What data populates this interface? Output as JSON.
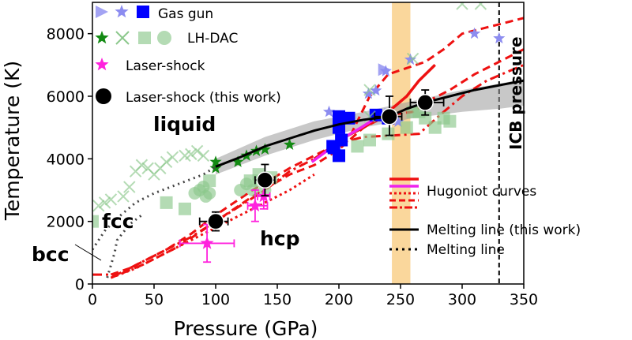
{
  "chart_data": {
    "type": "scatter",
    "xlabel": "Pressure (GPa)",
    "ylabel": "Temperature (K)",
    "xlim": [
      0,
      350
    ],
    "ylim": [
      0,
      9000
    ],
    "xticks": [
      "0",
      "50",
      "100",
      "150",
      "200",
      "250",
      "300",
      "350"
    ],
    "yticks": [
      "0",
      "2000",
      "4000",
      "6000",
      "8000"
    ],
    "xtick_values": [
      0,
      50,
      100,
      150,
      200,
      250,
      300,
      350
    ],
    "ytick_values": [
      0,
      2000,
      4000,
      6000,
      8000
    ],
    "phase_labels": {
      "liquid": "liquid",
      "fcc": "fcc",
      "bcc": "bcc",
      "hcp": "hcp"
    },
    "icb_label": "ICB pressure",
    "icb_pressure": 330,
    "shaded_band": {
      "x": [
        243,
        258
      ],
      "color": "#f5a623"
    },
    "legend": {
      "gas_gun": "Gas gun",
      "lhdac": "LH-DAC",
      "laser_shock": "Laser-shock",
      "this_work": "Laser-shock (this work)",
      "hugoniot": "Hugoniot curves",
      "melting_this_work": "Melting line (this work)",
      "melting": "Melting line"
    },
    "colors": {
      "gas_gun_tri": "#8c8cf0",
      "gas_gun_star": "#8c8cf0",
      "gas_gun_square": "#0000ff",
      "lhdac_star": "#138a13",
      "lhdac_x": "#8cc88c",
      "lhdac_square": "#8cc88c",
      "lhdac_circle": "#8cc88c",
      "laser_shock": "#ff22dd",
      "this_work": "#000000",
      "hugoniot": "#ee1111",
      "hugoniot_magenta": "#ee22ee",
      "band_grey": "#9a9a9a"
    },
    "series": [
      {
        "name": "Gas gun",
        "marker": "triangle",
        "points": [
          [
            5,
            8600
          ],
          [
            237,
            6850
          ],
          [
            242,
            5420
          ]
        ]
      },
      {
        "name": "Gas gun",
        "marker": "star",
        "points": [
          [
            25,
            8600
          ],
          [
            238,
            6800
          ],
          [
            258,
            7170
          ],
          [
            224,
            6080
          ],
          [
            230,
            6180
          ],
          [
            248,
            5180
          ],
          [
            310,
            8000
          ],
          [
            330,
            7850
          ],
          [
            200,
            5050
          ],
          [
            192,
            5500
          ]
        ]
      },
      {
        "name": "Gas gun",
        "marker": "square",
        "points": [
          [
            42,
            8610
          ],
          [
            200,
            5350
          ],
          [
            200,
            5000
          ],
          [
            208,
            5300
          ],
          [
            230,
            5400
          ],
          [
            240,
            5300
          ],
          [
            196,
            4350
          ],
          [
            202,
            4600
          ],
          [
            200,
            4100
          ],
          [
            195,
            4400
          ]
        ]
      },
      {
        "name": "LH-DAC",
        "marker": "star",
        "points": [
          [
            7,
            7780
          ],
          [
            100,
            3700
          ],
          [
            100,
            3900
          ],
          [
            118,
            3900
          ],
          [
            125,
            4100
          ],
          [
            133,
            4250
          ],
          [
            140,
            4300
          ],
          [
            160,
            4450
          ]
        ]
      },
      {
        "name": "LH-DAC",
        "marker": "x",
        "points": [
          [
            29,
            7780
          ],
          [
            5,
            2500
          ],
          [
            10,
            2600
          ],
          [
            15,
            2700
          ],
          [
            25,
            2800
          ],
          [
            30,
            3100
          ],
          [
            35,
            3600
          ],
          [
            40,
            3800
          ],
          [
            45,
            3700
          ],
          [
            50,
            3500
          ],
          [
            55,
            3700
          ],
          [
            60,
            3900
          ],
          [
            65,
            4050
          ],
          [
            75,
            4100
          ],
          [
            80,
            4150
          ],
          [
            85,
            4250
          ],
          [
            90,
            4100
          ],
          [
            225,
            5350
          ],
          [
            225,
            6200
          ],
          [
            260,
            7200
          ],
          [
            300,
            8950
          ],
          [
            315,
            8950
          ]
        ]
      },
      {
        "name": "LH-DAC",
        "marker": "square",
        "points": [
          [
            49,
            7780
          ],
          [
            0,
            2000
          ],
          [
            60,
            2600
          ],
          [
            75,
            2400
          ],
          [
            95,
            3300
          ],
          [
            128,
            3300
          ],
          [
            135,
            3500
          ],
          [
            145,
            3400
          ],
          [
            215,
            4400
          ],
          [
            225,
            4600
          ],
          [
            240,
            4800
          ],
          [
            255,
            5000
          ],
          [
            260,
            5500
          ],
          [
            265,
            5500
          ],
          [
            270,
            5300
          ],
          [
            278,
            5000
          ],
          [
            285,
            5300
          ],
          [
            290,
            5200
          ]
        ]
      },
      {
        "name": "LH-DAC",
        "marker": "circle",
        "points": [
          [
            63,
            7780
          ],
          [
            83,
            2900
          ],
          [
            87,
            3000
          ],
          [
            90,
            3100
          ],
          [
            92,
            2800
          ],
          [
            95,
            2900
          ],
          [
            120,
            3000
          ],
          [
            125,
            3200
          ],
          [
            130,
            3000
          ],
          [
            135,
            3300
          ],
          [
            140,
            3000
          ]
        ]
      },
      {
        "name": "Laser-shock",
        "marker": "star",
        "points": [
          [
            93,
            1300
          ],
          [
            132,
            2500
          ],
          [
            139,
            2800
          ]
        ],
        "xerr": [
          [
            22,
            22
          ],
          [
            6,
            10
          ],
          [
            5,
            5
          ]
        ],
        "yerr": [
          [
            600,
            600
          ],
          [
            500,
            500
          ],
          [
            400,
            400
          ]
        ]
      },
      {
        "name": "Laser-shock (this work)",
        "marker": "circle",
        "points": [
          [
            100,
            2000
          ],
          [
            140,
            3320
          ],
          [
            241,
            5350
          ],
          [
            270,
            5800
          ]
        ],
        "xerr": [
          [
            13,
            10
          ],
          [
            8,
            8
          ],
          [
            12,
            10
          ],
          [
            12,
            15
          ]
        ],
        "yerr": [
          [
            300,
            300
          ],
          [
            500,
            500
          ],
          [
            600,
            650
          ],
          [
            400,
            400
          ]
        ]
      }
    ],
    "curves": {
      "hugoniot_solid": [
        [
          180,
          4000
        ],
        [
          195,
          4400
        ],
        [
          205,
          4700
        ],
        [
          220,
          5000
        ],
        [
          240,
          5500
        ],
        [
          255,
          6000
        ],
        [
          265,
          6500
        ],
        [
          278,
          7000
        ]
      ],
      "hugoniot_dashed_1": [
        [
          15,
          300
        ],
        [
          30,
          500
        ],
        [
          45,
          800
        ],
        [
          60,
          1100
        ],
        [
          80,
          1600
        ],
        [
          100,
          2200
        ],
        [
          130,
          3000
        ],
        [
          160,
          3700
        ],
        [
          190,
          4300
        ],
        [
          210,
          4800
        ],
        [
          225,
          6000
        ],
        [
          240,
          6700
        ],
        [
          255,
          6900
        ],
        [
          270,
          7100
        ],
        [
          285,
          7500
        ],
        [
          300,
          8000
        ],
        [
          330,
          8300
        ],
        [
          350,
          8500
        ]
      ],
      "hugoniot_dashed_2": [
        [
          15,
          200
        ],
        [
          40,
          600
        ],
        [
          70,
          1200
        ],
        [
          100,
          2000
        ],
        [
          130,
          2800
        ],
        [
          160,
          3500
        ],
        [
          180,
          3800
        ],
        [
          200,
          4300
        ],
        [
          220,
          5000
        ],
        [
          240,
          5400
        ],
        [
          260,
          5500
        ],
        [
          275,
          5900
        ],
        [
          290,
          6200
        ],
        [
          310,
          6700
        ],
        [
          330,
          7100
        ],
        [
          350,
          7500
        ]
      ],
      "hugoniot_dotted": [
        [
          15,
          200
        ],
        [
          35,
          500
        ],
        [
          55,
          900
        ],
        [
          80,
          1400
        ],
        [
          100,
          1800
        ],
        [
          120,
          2200
        ],
        [
          140,
          2600
        ],
        [
          160,
          3000
        ],
        [
          180,
          3500
        ]
      ],
      "hugoniot_dashdot": [
        [
          0,
          300
        ],
        [
          20,
          300
        ],
        [
          40,
          700
        ],
        [
          60,
          1100
        ],
        [
          80,
          1500
        ],
        [
          100,
          2000
        ],
        [
          120,
          2500
        ],
        [
          140,
          3000
        ],
        [
          160,
          3600
        ],
        [
          180,
          4000
        ],
        [
          200,
          4500
        ],
        [
          220,
          4700
        ],
        [
          245,
          4750
        ],
        [
          265,
          4800
        ],
        [
          285,
          5500
        ],
        [
          300,
          6000
        ],
        [
          320,
          6500
        ],
        [
          350,
          7000
        ]
      ],
      "hugoniot_magenta": [
        [
          178,
          3900
        ],
        [
          192,
          4300
        ],
        [
          205,
          4700
        ],
        [
          218,
          5000
        ],
        [
          230,
          5300
        ],
        [
          240,
          5400
        ]
      ],
      "melting_this_work": [
        [
          100,
          3750
        ],
        [
          120,
          4050
        ],
        [
          140,
          4400
        ],
        [
          160,
          4650
        ],
        [
          180,
          4900
        ],
        [
          200,
          5100
        ],
        [
          220,
          5250
        ],
        [
          241,
          5350
        ],
        [
          255,
          5600
        ],
        [
          270,
          5800
        ],
        [
          290,
          6000
        ],
        [
          310,
          6200
        ],
        [
          330,
          6350
        ],
        [
          350,
          6500
        ]
      ],
      "melting_band_upper": [
        [
          100,
          4000
        ],
        [
          140,
          4700
        ],
        [
          180,
          5200
        ],
        [
          220,
          5500
        ],
        [
          260,
          5850
        ],
        [
          300,
          6200
        ],
        [
          330,
          6400
        ],
        [
          350,
          6550
        ]
      ],
      "melting_band_lower": [
        [
          100,
          3500
        ],
        [
          140,
          4100
        ],
        [
          180,
          4600
        ],
        [
          220,
          5000
        ],
        [
          260,
          5300
        ],
        [
          300,
          5500
        ],
        [
          330,
          5600
        ],
        [
          350,
          5700
        ]
      ],
      "melting_dotted": [
        [
          0,
          1100
        ],
        [
          10,
          1700
        ],
        [
          20,
          2100
        ],
        [
          35,
          2600
        ],
        [
          50,
          2900
        ],
        [
          70,
          3200
        ],
        [
          90,
          3500
        ],
        [
          100,
          3750
        ]
      ],
      "melting_dotted_low": [
        [
          12,
          200
        ],
        [
          15,
          600
        ],
        [
          18,
          1000
        ],
        [
          20,
          1400
        ],
        [
          30,
          1900
        ],
        [
          40,
          2200
        ]
      ]
    }
  }
}
